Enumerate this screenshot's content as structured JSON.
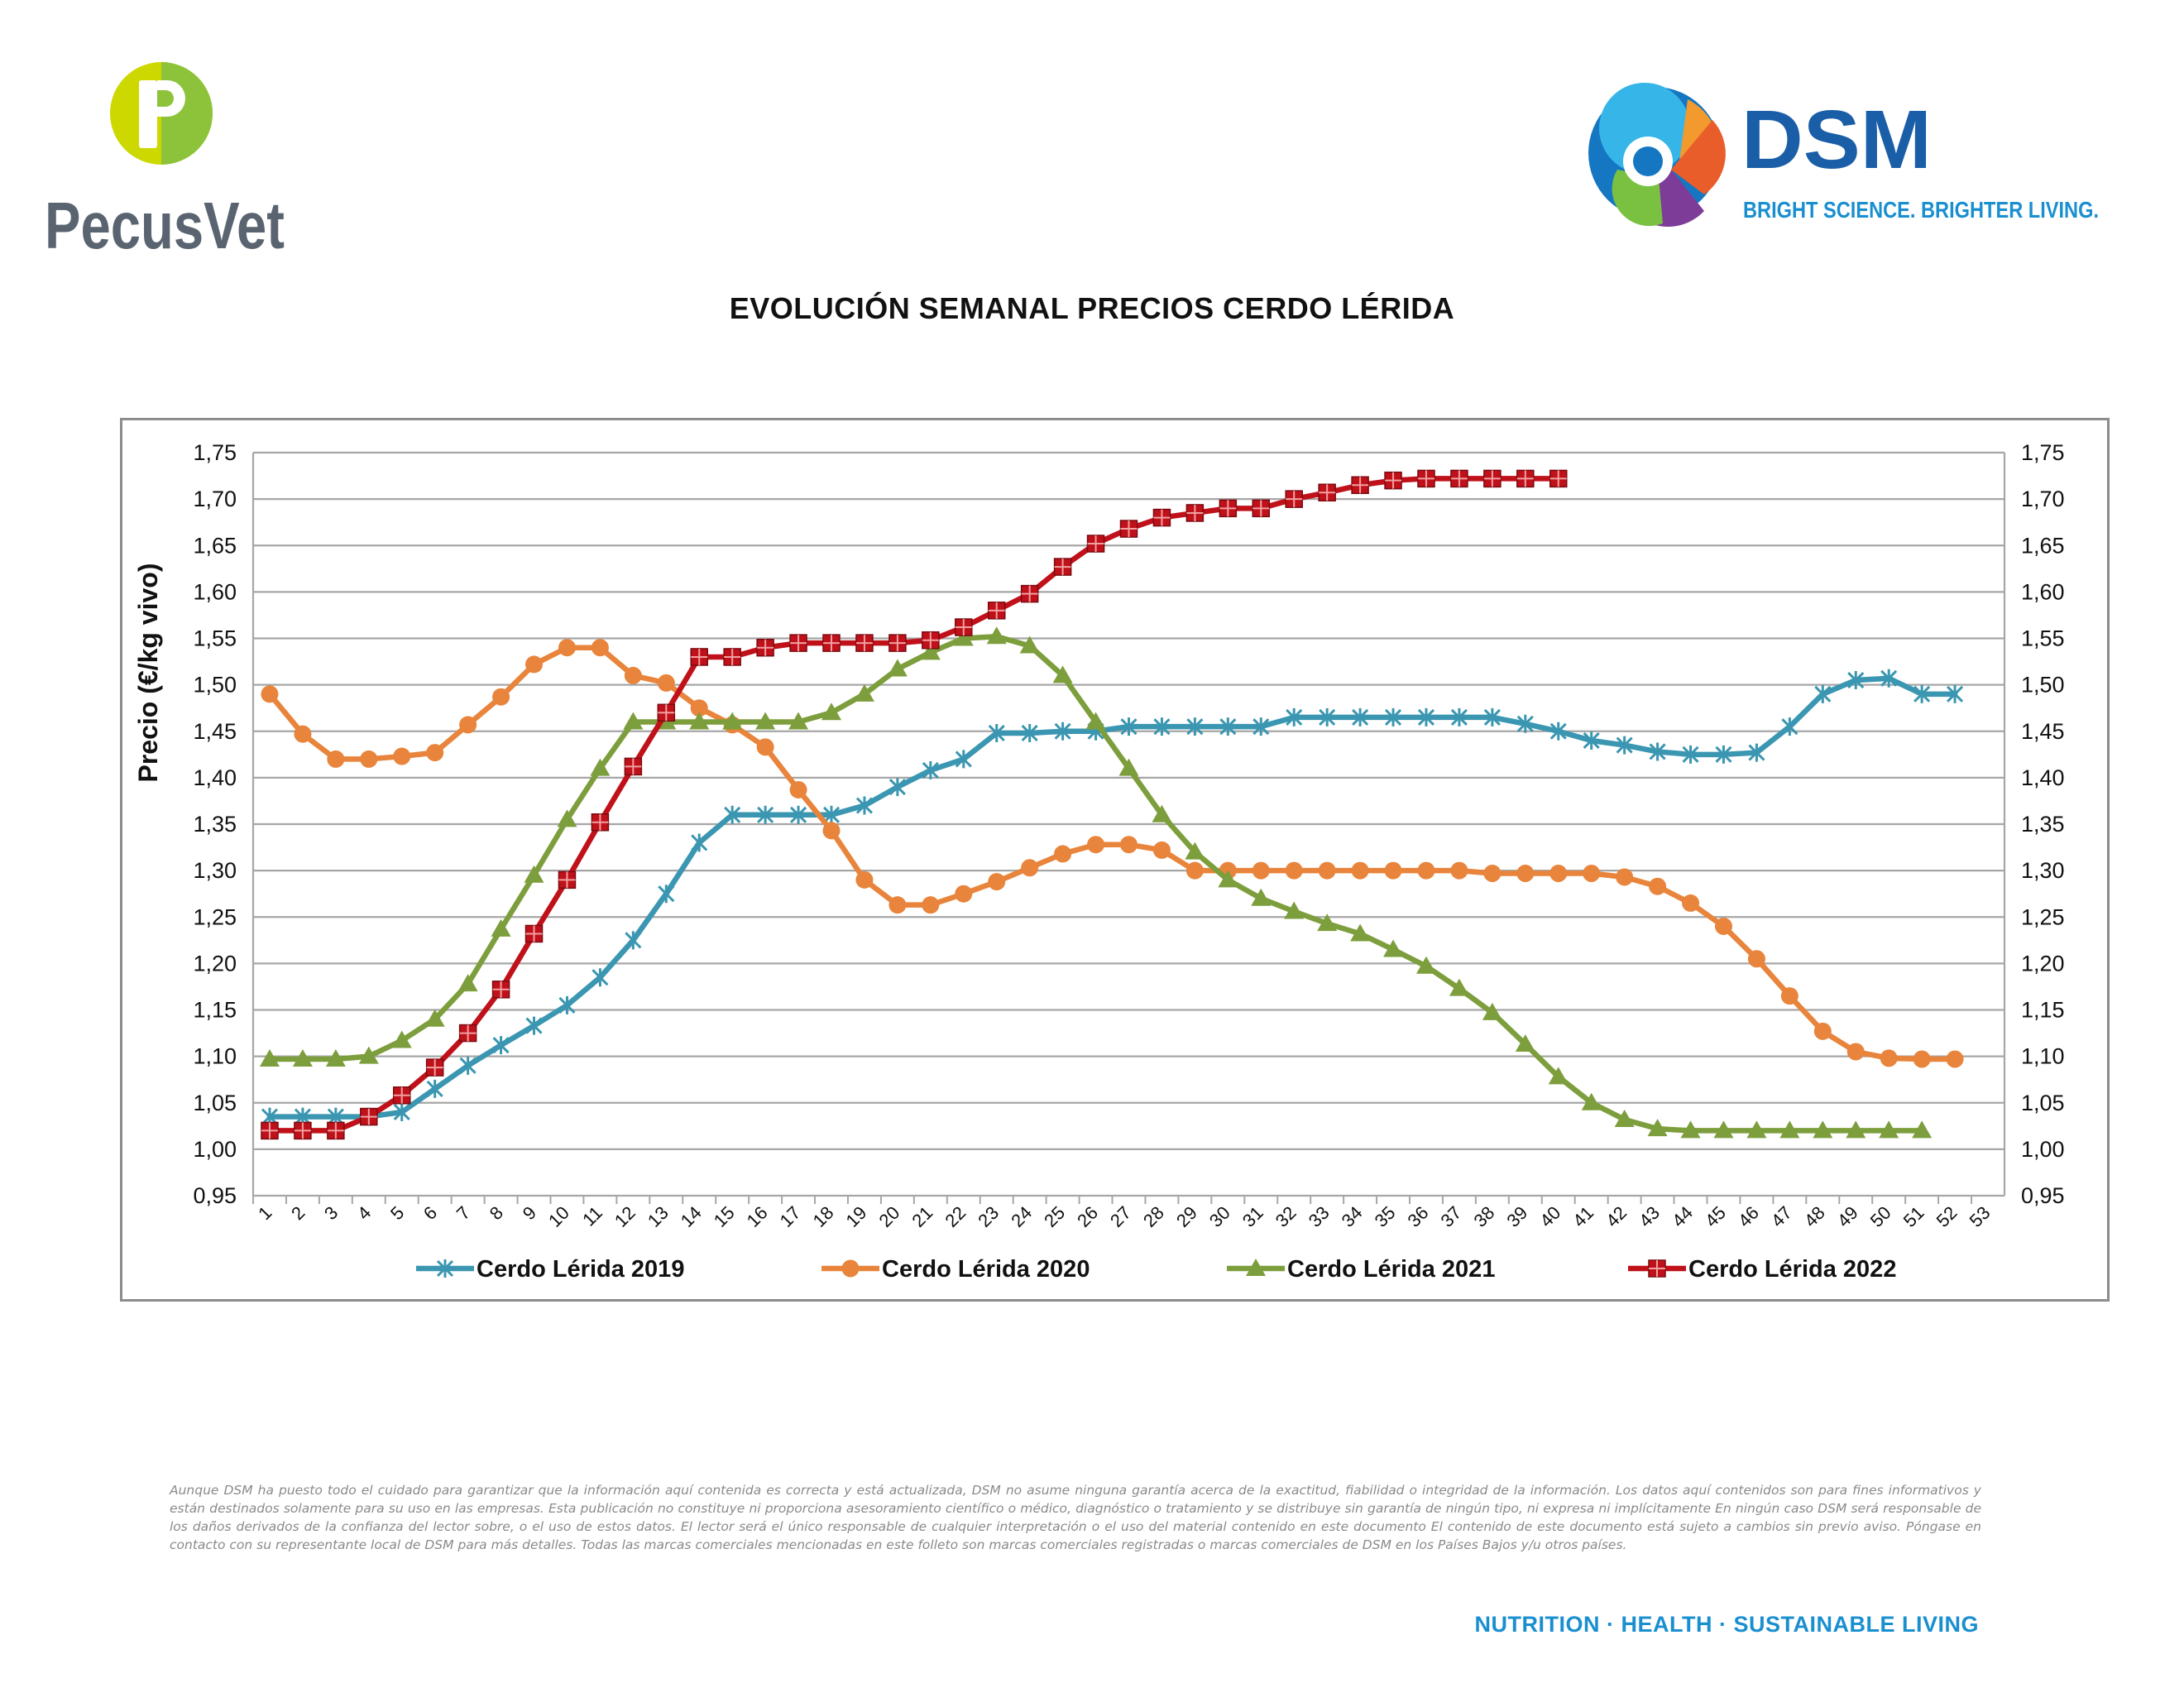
{
  "logos": {
    "pecusvet": {
      "name": "PecusVet"
    },
    "dsm": {
      "name": "DSM",
      "tagline": "BRIGHT SCIENCE. BRIGHTER LIVING."
    }
  },
  "chart_data": {
    "type": "line",
    "title": "EVOLUCIÓN SEMANAL PRECIOS CERDO LÉRIDA",
    "ylabel": "Precio (€/kg vivo)",
    "xlabel": "",
    "ylim": [
      0.95,
      1.75
    ],
    "ytick_step": 0.05,
    "secondary_y_axis": true,
    "grid": "horizontal",
    "legend_position": "bottom",
    "categories": [
      "1",
      "2",
      "3",
      "4",
      "5",
      "6",
      "7",
      "8",
      "9",
      "10",
      "11",
      "12",
      "13",
      "14",
      "15",
      "16",
      "17",
      "18",
      "19",
      "20",
      "21",
      "22",
      "23",
      "24",
      "25",
      "26",
      "27",
      "28",
      "29",
      "30",
      "31",
      "32",
      "33",
      "34",
      "35",
      "36",
      "37",
      "38",
      "39",
      "40",
      "41",
      "42",
      "43",
      "44",
      "45",
      "46",
      "47",
      "48",
      "49",
      "50",
      "51",
      "52",
      "53"
    ],
    "series": [
      {
        "name": "Cerdo Lérida 2019",
        "color": "#3a96b1",
        "marker": "star",
        "values": [
          1.035,
          1.035,
          1.035,
          1.035,
          1.04,
          1.065,
          1.09,
          1.112,
          1.133,
          1.155,
          1.185,
          1.225,
          1.275,
          1.33,
          1.36,
          1.36,
          1.36,
          1.36,
          1.37,
          1.39,
          1.408,
          1.42,
          1.448,
          1.448,
          1.45,
          1.45,
          1.455,
          1.455,
          1.455,
          1.455,
          1.455,
          1.465,
          1.465,
          1.465,
          1.465,
          1.465,
          1.465,
          1.465,
          1.458,
          1.45,
          1.44,
          1.435,
          1.428,
          1.425,
          1.425,
          1.427,
          1.455,
          1.49,
          1.505,
          1.507,
          1.49,
          1.49,
          null
        ]
      },
      {
        "name": "Cerdo Lérida 2020",
        "color": "#e8843b",
        "marker": "circle",
        "values": [
          1.49,
          1.447,
          1.42,
          1.42,
          1.423,
          1.427,
          1.457,
          1.487,
          1.522,
          1.54,
          1.54,
          1.51,
          1.502,
          1.475,
          1.457,
          1.433,
          1.387,
          1.343,
          1.29,
          1.263,
          1.263,
          1.275,
          1.288,
          1.303,
          1.318,
          1.328,
          1.328,
          1.322,
          1.3,
          1.3,
          1.3,
          1.3,
          1.3,
          1.3,
          1.3,
          1.3,
          1.3,
          1.297,
          1.297,
          1.297,
          1.297,
          1.293,
          1.283,
          1.265,
          1.24,
          1.205,
          1.165,
          1.127,
          1.105,
          1.098,
          1.097,
          1.097,
          null
        ]
      },
      {
        "name": "Cerdo Lérida 2021",
        "color": "#7d9e3c",
        "marker": "triangle",
        "values": [
          1.097,
          1.097,
          1.097,
          1.1,
          1.117,
          1.14,
          1.178,
          1.237,
          1.295,
          1.355,
          1.41,
          1.46,
          1.46,
          1.46,
          1.46,
          1.46,
          1.46,
          1.47,
          1.49,
          1.517,
          1.535,
          1.55,
          1.552,
          1.542,
          1.51,
          1.46,
          1.41,
          1.36,
          1.32,
          1.29,
          1.27,
          1.256,
          1.243,
          1.232,
          1.215,
          1.197,
          1.173,
          1.147,
          1.113,
          1.078,
          1.05,
          1.032,
          1.022,
          1.02,
          1.02,
          1.02,
          1.02,
          1.02,
          1.02,
          1.02,
          1.02,
          null,
          null
        ]
      },
      {
        "name": "Cerdo Lérida 2022",
        "color": "#c0111a",
        "marker": "square",
        "values": [
          1.02,
          1.02,
          1.02,
          1.035,
          1.058,
          1.088,
          1.125,
          1.172,
          1.232,
          1.29,
          1.352,
          1.412,
          1.47,
          1.53,
          1.53,
          1.54,
          1.545,
          1.545,
          1.545,
          1.545,
          1.548,
          1.562,
          1.58,
          1.598,
          1.627,
          1.652,
          1.668,
          1.68,
          1.685,
          1.69,
          1.69,
          1.7,
          1.707,
          1.715,
          1.72,
          1.722,
          1.722,
          1.722,
          1.722,
          1.722,
          null,
          null,
          null,
          null,
          null,
          null,
          null,
          null,
          null,
          null,
          null,
          null,
          null
        ]
      }
    ]
  },
  "disclaimer": "Aunque DSM ha puesto todo el cuidado para garantizar que la información aquí contenida es correcta y está actualizada, DSM no asume ninguna garantía acerca de la exactitud, fiabilidad o integridad de la información. Los datos aquí contenidos son para fines informativos y están destinados solamente para su uso en las empresas. Esta publicación no constituye ni proporciona asesoramiento científico o médico, diagnóstico o tratamiento y se distribuye sin garantía de ningún tipo, ni expresa ni implícitamente En ningún caso DSM será responsable de los daños derivados de la confianza del lector sobre, o el uso de estos datos. El lector será el único responsable de cualquier interpretación o el uso del material contenido en este documento El contenido de este documento está sujeto a cambios sin previo aviso. Póngase en contacto con su representante local de DSM para más detalles. Todas las marcas comerciales mencionadas en este folleto son marcas comerciales registradas o marcas comerciales de DSM en los Países Bajos y/u otros países.",
  "footer": {
    "tagline": "NUTRITION · HEALTH · SUSTAINABLE LIVING"
  },
  "colors": {
    "grid": "#a6a6a6",
    "frame": "#8c8c8c",
    "dsm_blue": "#1a5ea8",
    "tagline_blue": "#1a8fd0"
  }
}
